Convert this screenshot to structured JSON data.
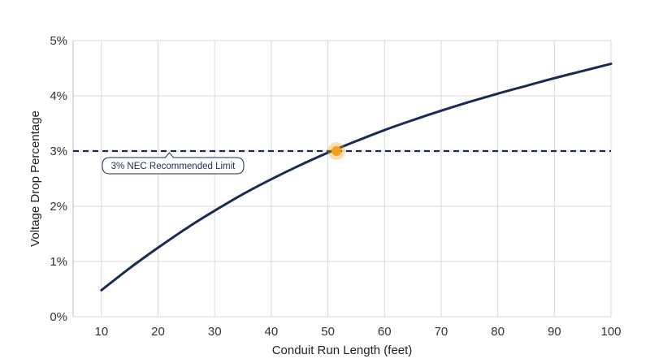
{
  "chart_data": {
    "type": "line",
    "xlabel": "Conduit Run Length (feet)",
    "ylabel": "Voltage Drop Percentage",
    "xlim": [
      10,
      100
    ],
    "ylim": [
      0,
      5
    ],
    "x_ticks": [
      10,
      20,
      30,
      40,
      50,
      60,
      70,
      80,
      90,
      100
    ],
    "x_tick_labels": [
      "10",
      "20",
      "30",
      "40",
      "50",
      "60",
      "70",
      "80",
      "90",
      "100"
    ],
    "y_ticks": [
      0,
      1,
      2,
      3,
      4,
      5
    ],
    "y_tick_labels": [
      "0%",
      "1%",
      "2%",
      "3%",
      "4%",
      "5%"
    ],
    "grid": true,
    "series": [
      {
        "x": [
          10,
          15,
          20,
          25,
          30,
          35,
          40,
          45,
          50,
          55,
          60,
          65,
          70,
          75,
          80,
          85,
          90,
          95,
          100
        ],
        "values": [
          0.48,
          0.88,
          1.25,
          1.6,
          1.92,
          2.22,
          2.49,
          2.74,
          2.97,
          3.18,
          3.38,
          3.56,
          3.73,
          3.89,
          4.04,
          4.18,
          4.32,
          4.45,
          4.58
        ],
        "color": "#1a2b52"
      }
    ],
    "reference_line": {
      "y": 3,
      "style": "dashed",
      "color": "#1a2b52",
      "label": "3% NEC Recommended Limit"
    },
    "highlight_point": {
      "x": 51.5,
      "y": 3.0,
      "color": "#f0a020"
    }
  }
}
